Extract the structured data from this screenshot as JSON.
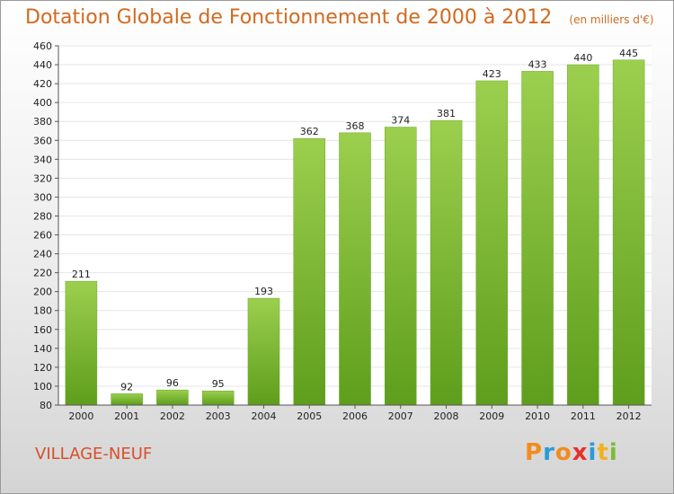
{
  "chart_data": {
    "type": "bar",
    "title": "Dotation Globale de Fonctionnement de 2000 à 2012",
    "subtitle": "(en milliers d'€)",
    "categories": [
      "2000",
      "2001",
      "2002",
      "2003",
      "2004",
      "2005",
      "2006",
      "2007",
      "2008",
      "2009",
      "2010",
      "2011",
      "2012"
    ],
    "values": [
      211,
      92,
      96,
      95,
      193,
      362,
      368,
      374,
      381,
      423,
      433,
      440,
      445
    ],
    "ylim": [
      80,
      460
    ],
    "yticks": [
      80,
      100,
      120,
      140,
      160,
      180,
      200,
      220,
      240,
      260,
      280,
      300,
      320,
      340,
      360,
      380,
      400,
      420,
      440,
      460
    ],
    "grid": true,
    "bar_color": "#7dbb35",
    "bar_color_top": "#9ccf4e",
    "grid_color": "#e6e6e6"
  },
  "footer": {
    "commune": "VILLAGE-NEUF",
    "brand": "Proxiti"
  },
  "colors": {
    "title": "#d2691e",
    "commune": "#d94f2a",
    "brand_letters": [
      "#f28c1e",
      "#2a9bd6",
      "#f28c1e",
      "#e8302a",
      "#2a9bd6",
      "#f2b21e",
      "#7dbb35"
    ]
  }
}
